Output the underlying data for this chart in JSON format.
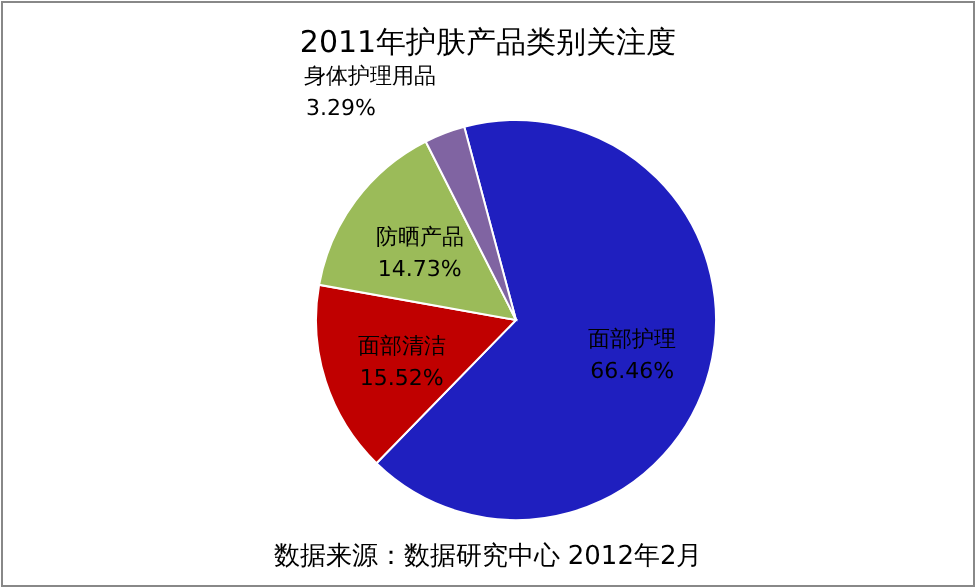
{
  "chart_data": {
    "type": "pie",
    "title": "2011年护肤产品类别关注度",
    "categories": [
      "面部护理",
      "面部清洁",
      "防晒产品",
      "身体护理用品"
    ],
    "values": [
      66.46,
      15.52,
      14.73,
      3.29
    ],
    "colors": [
      "#1f1fbf",
      "#c00000",
      "#9bbb59",
      "#8064a2"
    ],
    "value_labels": [
      "66.46%",
      "15.52%",
      "14.73%",
      "3.29%"
    ],
    "annotations": [
      "数据来源：数据研究中心      2012年2月"
    ]
  }
}
